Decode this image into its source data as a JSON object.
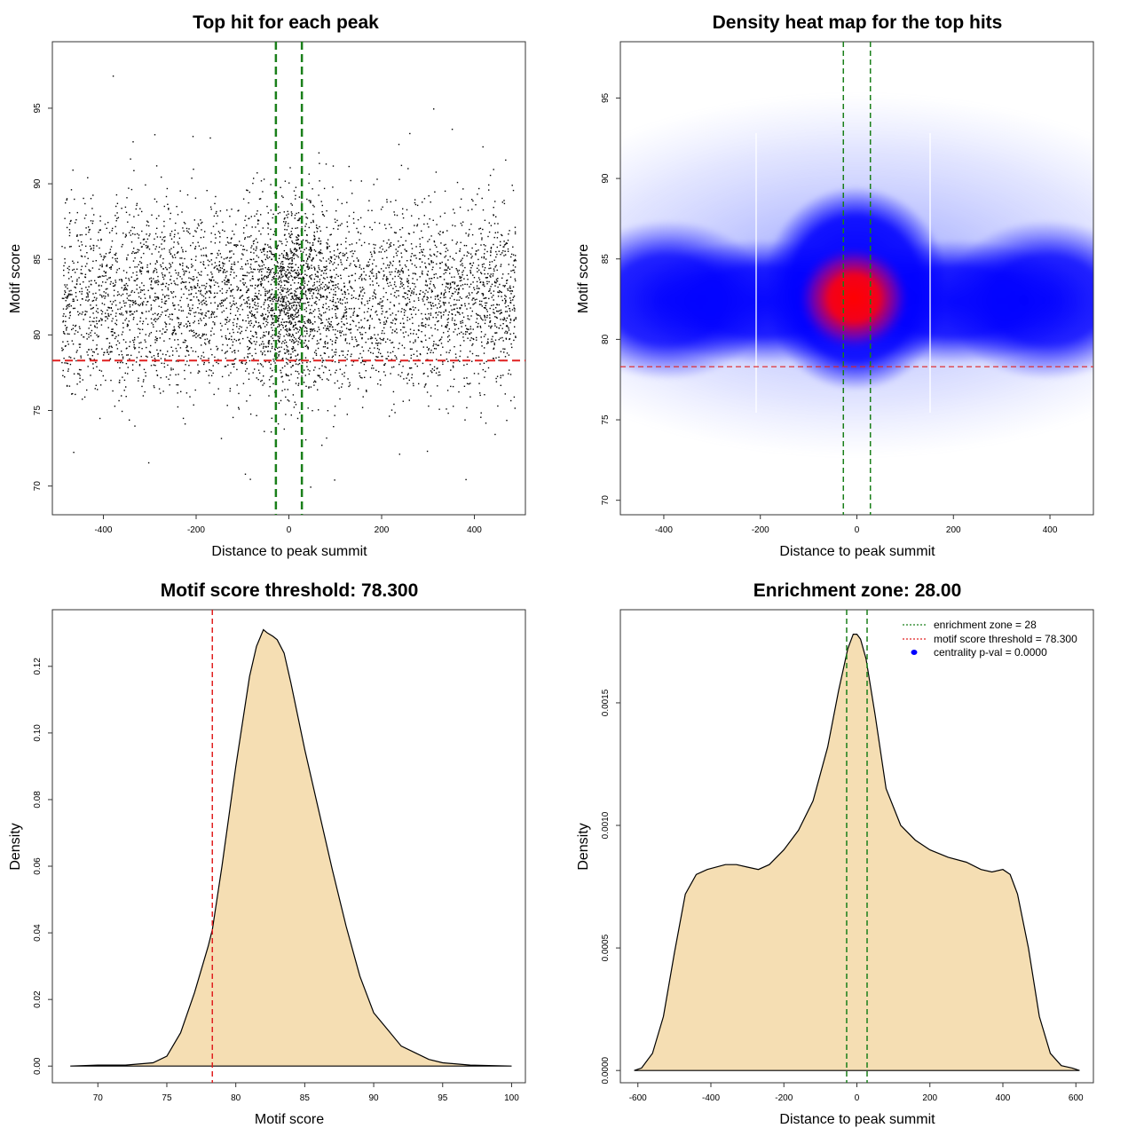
{
  "chart_data": [
    {
      "type": "scatter",
      "title": "Top hit for each peak",
      "xlabel": "Distance to peak summit",
      "ylabel": "Motif score",
      "xlim": [
        -510,
        510
      ],
      "ylim": [
        68.1,
        99.4
      ],
      "xticks": [
        -400,
        -200,
        0,
        200,
        400
      ],
      "yticks": [
        70,
        75,
        80,
        85,
        90,
        95
      ],
      "points_description": "approx. 6000 points, x uniform in [-490, 490], y centered ~82.5 (sd ~3), denser near x = 0",
      "vlines": [
        -28,
        28
      ],
      "hline": 78.3,
      "vline_color": "#1a7f1a",
      "hline_color": "#e02020"
    },
    {
      "type": "heatmap",
      "title": "Density heat map for the top hits",
      "xlabel": "Distance to peak summit",
      "ylabel": "Motif score",
      "xlim": [
        -490,
        490
      ],
      "ylim": [
        69.1,
        98.5
      ],
      "xticks": [
        -400,
        -200,
        0,
        200,
        400
      ],
      "yticks": [
        70,
        75,
        80,
        85,
        90,
        95
      ],
      "peak": {
        "x": 0,
        "y": 82.3
      },
      "vlines": [
        -28,
        28
      ],
      "hline": 78.3,
      "low_color": "#ffffff",
      "mid_color": "#0000ff",
      "high_color": "#ff0000"
    },
    {
      "type": "area",
      "title": "Motif score threshold: 78.300",
      "xlabel": "Motif score",
      "ylabel": "Density",
      "xlim": [
        66.7,
        101.0
      ],
      "ylim": [
        -0.005,
        0.137
      ],
      "xticks": [
        70,
        75,
        80,
        85,
        90,
        95,
        100
      ],
      "yticks": [
        0.0,
        0.02,
        0.04,
        0.06,
        0.08,
        0.1,
        0.12
      ],
      "ytick_labels": [
        "0.00",
        "0.02",
        "0.04",
        "0.06",
        "0.08",
        "0.10",
        "0.12"
      ],
      "x": [
        68,
        70,
        72,
        74,
        75,
        76,
        77,
        78,
        78.3,
        79,
        80,
        81,
        81.5,
        82,
        82.3,
        82.7,
        83,
        83.5,
        84,
        85,
        86,
        87,
        88,
        89,
        90,
        91,
        92,
        93,
        94,
        95,
        97,
        100
      ],
      "y": [
        0.0,
        0.0003,
        0.0003,
        0.001,
        0.003,
        0.01,
        0.022,
        0.036,
        0.041,
        0.06,
        0.09,
        0.117,
        0.126,
        0.131,
        0.13,
        0.129,
        0.128,
        0.124,
        0.115,
        0.095,
        0.077,
        0.059,
        0.042,
        0.027,
        0.016,
        0.011,
        0.006,
        0.004,
        0.002,
        0.001,
        0.0003,
        0.0
      ],
      "fill": "#f5deb3",
      "vline": 78.3,
      "vline_color": "#e02020"
    },
    {
      "type": "area",
      "title": "Enrichment zone: 28.00",
      "xlabel": "Distance to peak summit",
      "ylabel": "Density",
      "xlim": [
        -648,
        648
      ],
      "ylim": [
        -5e-05,
        0.00188
      ],
      "xticks": [
        -600,
        -400,
        -200,
        0,
        200,
        400,
        600
      ],
      "yticks": [
        0.0,
        0.0005,
        0.001,
        0.0015
      ],
      "ytick_labels": [
        "0.0000",
        "0.0005",
        "0.0010",
        "0.0015"
      ],
      "x": [
        -610,
        -590,
        -560,
        -530,
        -500,
        -470,
        -440,
        -410,
        -360,
        -330,
        -300,
        -270,
        -240,
        -200,
        -160,
        -120,
        -80,
        -50,
        -25,
        -10,
        0,
        10,
        25,
        50,
        80,
        120,
        160,
        200,
        250,
        300,
        340,
        370,
        400,
        420,
        440,
        470,
        500,
        530,
        560,
        590,
        610
      ],
      "y": [
        0.0,
        1e-05,
        7e-05,
        0.00022,
        0.00048,
        0.00072,
        0.0008,
        0.00082,
        0.00084,
        0.00084,
        0.00083,
        0.00082,
        0.00084,
        0.0009,
        0.00098,
        0.0011,
        0.00132,
        0.00155,
        0.00172,
        0.00178,
        0.00178,
        0.00176,
        0.00168,
        0.00145,
        0.00115,
        0.001,
        0.00094,
        0.0009,
        0.00087,
        0.00085,
        0.00082,
        0.00081,
        0.00082,
        0.0008,
        0.00072,
        0.0005,
        0.00022,
        7e-05,
        2e-05,
        1e-05,
        0.0
      ],
      "fill": "#f5deb3",
      "vlines": [
        -28,
        28
      ],
      "vline_color": "#1a7f1a",
      "legend": [
        {
          "label": "enrichment zone = 28",
          "kind": "dotted-line",
          "color": "#1a7f1a"
        },
        {
          "label": "motif score threshold = 78.300",
          "kind": "dotted-line",
          "color": "#e02020"
        },
        {
          "label": "centrality p-val = 0.0000",
          "kind": "point",
          "color": "#0000ff"
        }
      ],
      "legend_position": "top-right"
    }
  ]
}
